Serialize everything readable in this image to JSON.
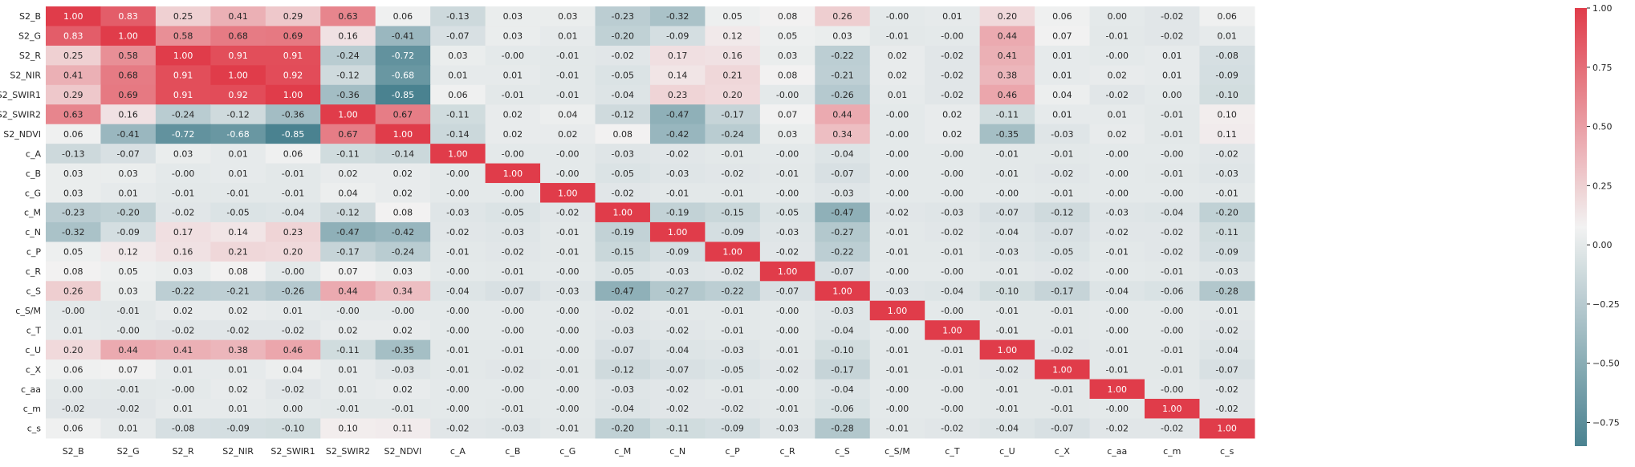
{
  "chart_data": {
    "type": "heatmap",
    "title": "",
    "xlabel": "",
    "ylabel": "",
    "row_labels": [
      "S2_B",
      "S2_G",
      "S2_R",
      "S2_NIR",
      "S2_SWIR1",
      "S2_SWIR2",
      "S2_NDVI",
      "c_A",
      "c_B",
      "c_G",
      "c_M",
      "c_N",
      "c_P",
      "c_R",
      "c_S",
      "c_S/M",
      "c_T",
      "c_U",
      "c_X",
      "c_aa",
      "c_m",
      "c_s"
    ],
    "col_labels": [
      "S2_B",
      "S2_G",
      "S2_R",
      "S2_NIR",
      "S2_SWIR1",
      "S2_SWIR2",
      "S2_NDVI",
      "c_A",
      "c_B",
      "c_G",
      "c_M",
      "c_N",
      "c_P",
      "c_R",
      "c_S",
      "c_S/M",
      "c_T",
      "c_U",
      "c_X",
      "c_aa",
      "c_m",
      "c_s"
    ],
    "values": [
      [
        1.0,
        0.83,
        0.25,
        0.41,
        0.29,
        0.63,
        0.06,
        -0.13,
        0.03,
        0.03,
        -0.23,
        -0.32,
        0.05,
        0.08,
        0.26,
        -0.0,
        0.01,
        0.2,
        0.06,
        0.0,
        -0.02,
        0.06
      ],
      [
        0.83,
        1.0,
        0.58,
        0.68,
        0.69,
        0.16,
        -0.41,
        -0.07,
        0.03,
        0.01,
        -0.2,
        -0.09,
        0.12,
        0.05,
        0.03,
        -0.01,
        -0.0,
        0.44,
        0.07,
        -0.01,
        -0.02,
        0.01
      ],
      [
        0.25,
        0.58,
        1.0,
        0.91,
        0.91,
        -0.24,
        -0.72,
        0.03,
        -0.0,
        -0.01,
        -0.02,
        0.17,
        0.16,
        0.03,
        -0.22,
        0.02,
        -0.02,
        0.41,
        0.01,
        -0.0,
        0.01,
        -0.08
      ],
      [
        0.41,
        0.68,
        0.91,
        1.0,
        0.92,
        -0.12,
        -0.68,
        0.01,
        0.01,
        -0.01,
        -0.05,
        0.14,
        0.21,
        0.08,
        -0.21,
        0.02,
        -0.02,
        0.38,
        0.01,
        0.02,
        0.01,
        -0.09
      ],
      [
        0.29,
        0.69,
        0.91,
        0.92,
        1.0,
        -0.36,
        -0.85,
        0.06,
        -0.01,
        -0.01,
        -0.04,
        0.23,
        0.2,
        -0.0,
        -0.26,
        0.01,
        -0.02,
        0.46,
        0.04,
        -0.02,
        0.0,
        -0.1
      ],
      [
        0.63,
        0.16,
        -0.24,
        -0.12,
        -0.36,
        1.0,
        0.67,
        -0.11,
        0.02,
        0.04,
        -0.12,
        -0.47,
        -0.17,
        0.07,
        0.44,
        -0.0,
        0.02,
        -0.11,
        0.01,
        0.01,
        -0.01,
        0.1
      ],
      [
        0.06,
        -0.41,
        -0.72,
        -0.68,
        -0.85,
        0.67,
        1.0,
        -0.14,
        0.02,
        0.02,
        0.08,
        -0.42,
        -0.24,
        0.03,
        0.34,
        -0.0,
        0.02,
        -0.35,
        -0.03,
        0.02,
        -0.01,
        0.11
      ],
      [
        -0.13,
        -0.07,
        0.03,
        0.01,
        0.06,
        -0.11,
        -0.14,
        1.0,
        -0.0,
        -0.0,
        -0.03,
        -0.02,
        -0.01,
        -0.0,
        -0.04,
        -0.0,
        -0.0,
        -0.01,
        -0.01,
        -0.0,
        -0.0,
        -0.02
      ],
      [
        0.03,
        0.03,
        -0.0,
        0.01,
        -0.01,
        0.02,
        0.02,
        -0.0,
        1.0,
        -0.0,
        -0.05,
        -0.03,
        -0.02,
        -0.01,
        -0.07,
        -0.0,
        -0.0,
        -0.01,
        -0.02,
        -0.0,
        -0.01,
        -0.03
      ],
      [
        0.03,
        0.01,
        -0.01,
        -0.01,
        -0.01,
        0.04,
        0.02,
        -0.0,
        -0.0,
        1.0,
        -0.02,
        -0.01,
        -0.01,
        -0.0,
        -0.03,
        -0.0,
        -0.0,
        -0.0,
        -0.01,
        -0.0,
        -0.0,
        -0.01
      ],
      [
        -0.23,
        -0.2,
        -0.02,
        -0.05,
        -0.04,
        -0.12,
        0.08,
        -0.03,
        -0.05,
        -0.02,
        1.0,
        -0.19,
        -0.15,
        -0.05,
        -0.47,
        -0.02,
        -0.03,
        -0.07,
        -0.12,
        -0.03,
        -0.04,
        -0.2
      ],
      [
        -0.32,
        -0.09,
        0.17,
        0.14,
        0.23,
        -0.47,
        -0.42,
        -0.02,
        -0.03,
        -0.01,
        -0.19,
        1.0,
        -0.09,
        -0.03,
        -0.27,
        -0.01,
        -0.02,
        -0.04,
        -0.07,
        -0.02,
        -0.02,
        -0.11
      ],
      [
        0.05,
        0.12,
        0.16,
        0.21,
        0.2,
        -0.17,
        -0.24,
        -0.01,
        -0.02,
        -0.01,
        -0.15,
        -0.09,
        1.0,
        -0.02,
        -0.22,
        -0.01,
        -0.01,
        -0.03,
        -0.05,
        -0.01,
        -0.02,
        -0.09
      ],
      [
        0.08,
        0.05,
        0.03,
        0.08,
        -0.0,
        0.07,
        0.03,
        -0.0,
        -0.01,
        -0.0,
        -0.05,
        -0.03,
        -0.02,
        1.0,
        -0.07,
        -0.0,
        -0.0,
        -0.01,
        -0.02,
        -0.0,
        -0.01,
        -0.03
      ],
      [
        0.26,
        0.03,
        -0.22,
        -0.21,
        -0.26,
        0.44,
        0.34,
        -0.04,
        -0.07,
        -0.03,
        -0.47,
        -0.27,
        -0.22,
        -0.07,
        1.0,
        -0.03,
        -0.04,
        -0.1,
        -0.17,
        -0.04,
        -0.06,
        -0.28
      ],
      [
        -0.0,
        -0.01,
        0.02,
        0.02,
        0.01,
        -0.0,
        -0.0,
        -0.0,
        -0.0,
        -0.0,
        -0.02,
        -0.01,
        -0.01,
        -0.0,
        -0.03,
        1.0,
        -0.0,
        -0.01,
        -0.01,
        -0.0,
        -0.0,
        -0.01
      ],
      [
        0.01,
        -0.0,
        -0.02,
        -0.02,
        -0.02,
        0.02,
        0.02,
        -0.0,
        -0.0,
        -0.0,
        -0.03,
        -0.02,
        -0.01,
        -0.0,
        -0.04,
        -0.0,
        1.0,
        -0.01,
        -0.01,
        -0.0,
        -0.0,
        -0.02
      ],
      [
        0.2,
        0.44,
        0.41,
        0.38,
        0.46,
        -0.11,
        -0.35,
        -0.01,
        -0.01,
        -0.0,
        -0.07,
        -0.04,
        -0.03,
        -0.01,
        -0.1,
        -0.01,
        -0.01,
        1.0,
        -0.02,
        -0.01,
        -0.01,
        -0.04
      ],
      [
        0.06,
        0.07,
        0.01,
        0.01,
        0.04,
        0.01,
        -0.03,
        -0.01,
        -0.02,
        -0.01,
        -0.12,
        -0.07,
        -0.05,
        -0.02,
        -0.17,
        -0.01,
        -0.01,
        -0.02,
        1.0,
        -0.01,
        -0.01,
        -0.07
      ],
      [
        0.0,
        -0.01,
        -0.0,
        0.02,
        -0.02,
        0.01,
        0.02,
        -0.0,
        -0.0,
        -0.0,
        -0.03,
        -0.02,
        -0.01,
        -0.0,
        -0.04,
        -0.0,
        -0.0,
        -0.01,
        -0.01,
        1.0,
        -0.0,
        -0.02
      ],
      [
        -0.02,
        -0.02,
        0.01,
        0.01,
        0.0,
        -0.01,
        -0.01,
        -0.0,
        -0.01,
        -0.0,
        -0.04,
        -0.02,
        -0.02,
        -0.01,
        -0.06,
        -0.0,
        -0.0,
        -0.01,
        -0.01,
        -0.0,
        1.0,
        -0.02
      ],
      [
        0.06,
        0.01,
        -0.08,
        -0.09,
        -0.1,
        0.1,
        0.11,
        -0.02,
        -0.03,
        -0.01,
        -0.2,
        -0.11,
        -0.09,
        -0.03,
        -0.28,
        -0.01,
        -0.02,
        -0.04,
        -0.07,
        -0.02,
        -0.02,
        1.0
      ]
    ],
    "value_format": "2 decimals",
    "colorbar": {
      "vmin": -0.85,
      "vmax": 1.0,
      "ticks": [
        1.0,
        0.75,
        0.5,
        0.25,
        0.0,
        -0.25,
        -0.5,
        -0.75
      ],
      "tick_labels": [
        "1.00",
        "0.75",
        "0.50",
        "0.25",
        "0.00",
        "−0.25",
        "−0.50",
        "−0.75"
      ]
    },
    "colors": {
      "negative": "#4a8290",
      "neutral": "#f2f2f2",
      "positive": "#e03c4a"
    },
    "grid": false,
    "legend": "colorbar-right"
  }
}
